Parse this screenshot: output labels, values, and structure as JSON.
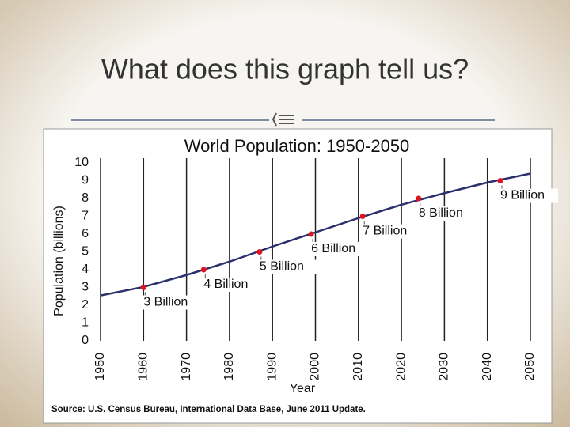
{
  "slide_title": "What does this graph tell us?",
  "chart_data": {
    "type": "line",
    "title": "World Population: 1950-2050",
    "x_label": "Year",
    "y_label": "Population (billions)",
    "source": "Source: U.S. Census Bureau, International Data Base, June 2011 Update.",
    "x": [
      1950,
      1960,
      1970,
      1980,
      1990,
      2000,
      2010,
      2020,
      2030,
      2040,
      2050
    ],
    "series": [
      {
        "color": "#2b2f6b",
        "values": [
          2.55,
          3.03,
          3.7,
          4.45,
          5.3,
          6.1,
          6.9,
          7.65,
          8.3,
          8.9,
          9.4
        ]
      }
    ],
    "annotations": [
      {
        "x": 1960,
        "y": 3,
        "label": "3 Billion"
      },
      {
        "x": 1974,
        "y": 4,
        "label": "4 Billion"
      },
      {
        "x": 1987,
        "y": 5,
        "label": "5 Billion"
      },
      {
        "x": 1999,
        "y": 6,
        "label": "6 Billion"
      },
      {
        "x": 2011,
        "y": 7,
        "label": "7 Billion"
      },
      {
        "x": 2024,
        "y": 8,
        "label": "8 Billion"
      },
      {
        "x": 2043,
        "y": 9,
        "label": "9 Billion"
      }
    ],
    "marker_color": "#e0141e",
    "xlim": [
      1950,
      2050
    ],
    "ylim": [
      0,
      10
    ],
    "xticks": [
      1950,
      1960,
      1970,
      1980,
      1990,
      2000,
      2010,
      2020,
      2030,
      2040,
      2050
    ],
    "yticks": [
      0,
      1,
      2,
      3,
      4,
      5,
      6,
      7,
      8,
      9,
      10
    ],
    "grid": true
  }
}
